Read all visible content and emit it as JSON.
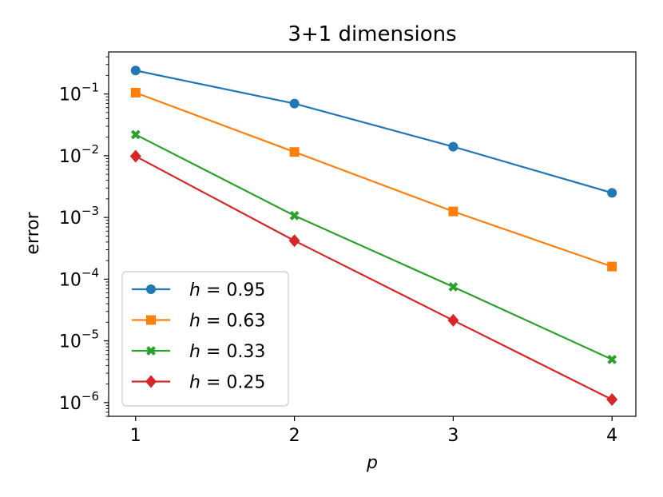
{
  "chart_data": {
    "type": "line",
    "title": "3+1 dimensions",
    "xlabel": "p",
    "ylabel": "error",
    "yscale": "log",
    "x": [
      1,
      2,
      3,
      4
    ],
    "xlim": [
      0.83,
      4.15
    ],
    "ylim": [
      6e-07,
      0.48
    ],
    "xticks": [
      1,
      2,
      3,
      4
    ],
    "xtick_labels": [
      "1",
      "2",
      "3",
      "4"
    ],
    "yticks": [
      1e-06,
      1e-05,
      0.0001,
      0.001,
      0.01,
      0.1
    ],
    "ytick_labels": [
      {
        "base": "10",
        "exp": "−6"
      },
      {
        "base": "10",
        "exp": "−5"
      },
      {
        "base": "10",
        "exp": "−4"
      },
      {
        "base": "10",
        "exp": "−3"
      },
      {
        "base": "10",
        "exp": "−2"
      },
      {
        "base": "10",
        "exp": "−1"
      }
    ],
    "grid": false,
    "legend_position": "lower-left",
    "series": [
      {
        "name": "h = 0.95",
        "label_var": "h",
        "label_val": "0.95",
        "color": "#1f77b4",
        "marker": "circle",
        "values": [
          0.24,
          0.07,
          0.014,
          0.0025
        ]
      },
      {
        "name": "h = 0.63",
        "label_var": "h",
        "label_val": "0.63",
        "color": "#ff7f0e",
        "marker": "square",
        "values": [
          0.105,
          0.0115,
          0.00125,
          0.00016
        ]
      },
      {
        "name": "h = 0.33",
        "label_var": "h",
        "label_val": "0.33",
        "color": "#2ca02c",
        "marker": "x",
        "values": [
          0.022,
          0.00107,
          7.5e-05,
          5e-06
        ]
      },
      {
        "name": "h = 0.25",
        "label_var": "h",
        "label_val": "0.25",
        "color": "#d62728",
        "marker": "diamond",
        "values": [
          0.0098,
          0.00042,
          2.15e-05,
          1.12e-06
        ]
      }
    ]
  }
}
